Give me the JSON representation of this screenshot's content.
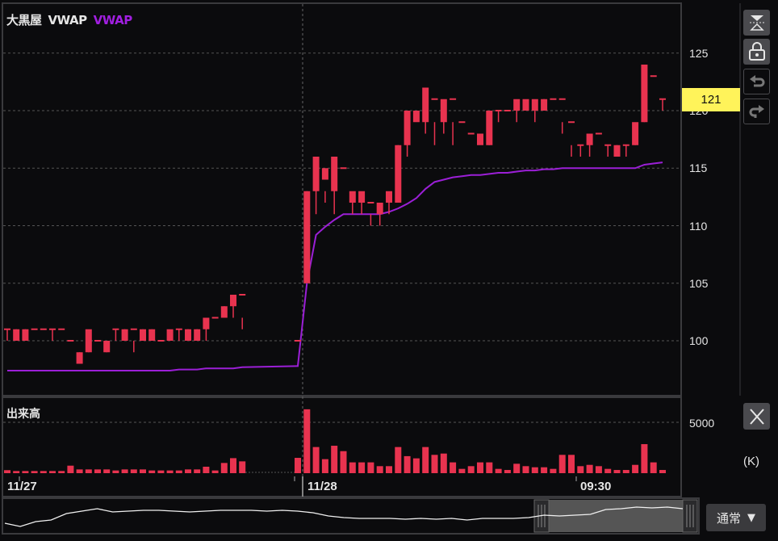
{
  "header": {
    "symbol": "大黒屋",
    "indicator_label": "VWAP",
    "indicator_legend": "VWAP"
  },
  "colors": {
    "up": "#e8334f",
    "down": "#5fe0d3",
    "vwap": "#9b1fd6",
    "last_price_bg": "#fff35a",
    "background": "#0b0b0d"
  },
  "price_axis": {
    "ticks": [
      "125",
      "120",
      "115",
      "110",
      "105",
      "100"
    ],
    "last_price": "121"
  },
  "volume_pane": {
    "title": "出来高",
    "tick": "5000",
    "unit": "(K)"
  },
  "time_axis": {
    "labels": [
      "11/27",
      "11/28",
      "09:30"
    ]
  },
  "buttons": [
    {
      "name": "fit-icon"
    },
    {
      "name": "lock-icon"
    },
    {
      "name": "undo-icon"
    },
    {
      "name": "redo-icon"
    },
    {
      "name": "close-icon"
    }
  ],
  "mode_select": {
    "value": "通常",
    "arrow": "▼"
  },
  "chart_data": {
    "type": "candlestick",
    "title": "",
    "ylim": [
      97,
      127
    ],
    "volume_ylim": [
      0,
      7500
    ],
    "grid": true,
    "sessions": [
      {
        "label": "11/27",
        "candles": [
          [
            101,
            101,
            100,
            101,
            300
          ],
          [
            100,
            101,
            100,
            101,
            215
          ],
          [
            100,
            101,
            100,
            101,
            215
          ],
          [
            101,
            101,
            100,
            100,
            215
          ],
          [
            101,
            101,
            101,
            101,
            215
          ],
          [
            101,
            101,
            100,
            101,
            215
          ],
          [
            101,
            101,
            100,
            100,
            215
          ],
          [
            100,
            100,
            98,
            98,
            750
          ],
          [
            98,
            99,
            98,
            99,
            375
          ],
          [
            99,
            101,
            99,
            100,
            375
          ],
          [
            100,
            100,
            100,
            100,
            375
          ],
          [
            99,
            100,
            99,
            100,
            375
          ],
          [
            101,
            101,
            100,
            101,
            270
          ],
          [
            100,
            101,
            100,
            101,
            375
          ],
          [
            101,
            101,
            99,
            100,
            375
          ],
          [
            100,
            101,
            100,
            101,
            375
          ],
          [
            100,
            101,
            100,
            101,
            270
          ],
          [
            100,
            100,
            100,
            100,
            270
          ],
          [
            100,
            101,
            100,
            100,
            270
          ],
          [
            101,
            101,
            100,
            101,
            270
          ],
          [
            100,
            101,
            100,
            101,
            375
          ],
          [
            100,
            101,
            100,
            101,
            375
          ],
          [
            101,
            102,
            100,
            102,
            645
          ],
          [
            102,
            102,
            102,
            102,
            270
          ],
          [
            102,
            103,
            102,
            103,
            1020
          ],
          [
            103,
            104,
            102,
            104,
            1500
          ],
          [
            104,
            104,
            101,
            102,
            1180
          ]
        ]
      },
      {
        "label": "11/28",
        "candles": [
          [
            100,
            100,
            100,
            100,
            1530
          ],
          [
            105,
            113,
            105,
            113,
            6380
          ],
          [
            113,
            116,
            111,
            114,
            2610
          ],
          [
            114,
            115,
            112,
            113,
            1400
          ],
          [
            113,
            116,
            111,
            115,
            2740
          ],
          [
            115,
            115,
            111,
            111,
            2200
          ],
          [
            112,
            113,
            111,
            112,
            1080
          ],
          [
            112,
            113,
            111,
            112,
            1080
          ],
          [
            112,
            112,
            110,
            111,
            1080
          ],
          [
            111,
            112,
            110,
            111,
            700
          ],
          [
            112,
            113,
            111,
            112,
            700
          ],
          [
            112,
            117,
            112,
            117,
            2610
          ],
          [
            117,
            120,
            116,
            119,
            1700
          ],
          [
            119,
            120,
            118,
            118,
            1480
          ],
          [
            119,
            122,
            118,
            120,
            2610
          ],
          [
            121,
            121,
            117,
            119,
            1830
          ],
          [
            119,
            121,
            118,
            120,
            1960
          ],
          [
            121,
            121,
            117,
            119,
            1080
          ],
          [
            119,
            119,
            118,
            118,
            430
          ],
          [
            118,
            118,
            117,
            117,
            700
          ],
          [
            117,
            118,
            116,
            116,
            1080
          ],
          [
            117,
            120,
            117,
            120,
            1080
          ],
          [
            120,
            120,
            119,
            120,
            430
          ],
          [
            120,
            120,
            119,
            119,
            320
          ],
          [
            120,
            121,
            119,
            120,
            940
          ],
          [
            120,
            121,
            120,
            120,
            700
          ],
          [
            120,
            121,
            119,
            120,
            590
          ],
          [
            120,
            121,
            120,
            121,
            590
          ],
          [
            121,
            121,
            120,
            120,
            430
          ],
          [
            121,
            121,
            118,
            119,
            1830
          ],
          [
            119,
            119,
            116,
            117,
            1830
          ],
          [
            117,
            117,
            116,
            117,
            700
          ],
          [
            117,
            118,
            116,
            118,
            830
          ],
          [
            118,
            118,
            116,
            116,
            700
          ],
          [
            117,
            117,
            116,
            117,
            430
          ],
          [
            116,
            117,
            116,
            117,
            320
          ],
          [
            117,
            117,
            116,
            117,
            320
          ],
          [
            117,
            119,
            117,
            118,
            830
          ],
          [
            119,
            124,
            119,
            123,
            2900
          ],
          [
            123,
            123,
            120,
            120,
            1080
          ],
          [
            121,
            121,
            120,
            121,
            320
          ]
        ]
      }
    ],
    "candle_fields": [
      "open",
      "close",
      "low",
      "high",
      "volume_k"
    ],
    "vwap": {
      "name": "VWAP",
      "session1": [
        97.4,
        97.4,
        97.4,
        97.4,
        97.4,
        97.4,
        97.4,
        97.4,
        97.4,
        97.4,
        97.4,
        97.4,
        97.4,
        97.4,
        97.4,
        97.4,
        97.4,
        97.4,
        97.4,
        97.5,
        97.5,
        97.5,
        97.6,
        97.6,
        97.6,
        97.6,
        97.7
      ],
      "session2": [
        97.8,
        105.0,
        109.2,
        109.9,
        110.5,
        111.0,
        111.0,
        111.0,
        111.0,
        111.0,
        111.2,
        111.5,
        111.9,
        112.4,
        113.2,
        113.8,
        114.0,
        114.2,
        114.3,
        114.4,
        114.4,
        114.5,
        114.6,
        114.6,
        114.7,
        114.8,
        114.8,
        114.9,
        114.9,
        115.0,
        115.0,
        115.0,
        115.0,
        115.0,
        115.0,
        115.0,
        115.0,
        115.0,
        115.3,
        115.4,
        115.5
      ]
    }
  },
  "navigator": {
    "series": [
      40,
      36,
      42,
      44,
      52,
      55,
      58,
      54,
      55,
      56,
      56,
      55,
      54,
      55,
      56,
      56,
      56,
      55,
      56,
      55,
      53,
      49,
      47,
      46,
      46,
      46,
      45,
      46,
      45,
      46,
      44,
      46,
      46,
      46,
      47,
      50,
      49,
      50,
      51,
      57,
      58,
      60,
      59,
      60,
      58
    ]
  }
}
